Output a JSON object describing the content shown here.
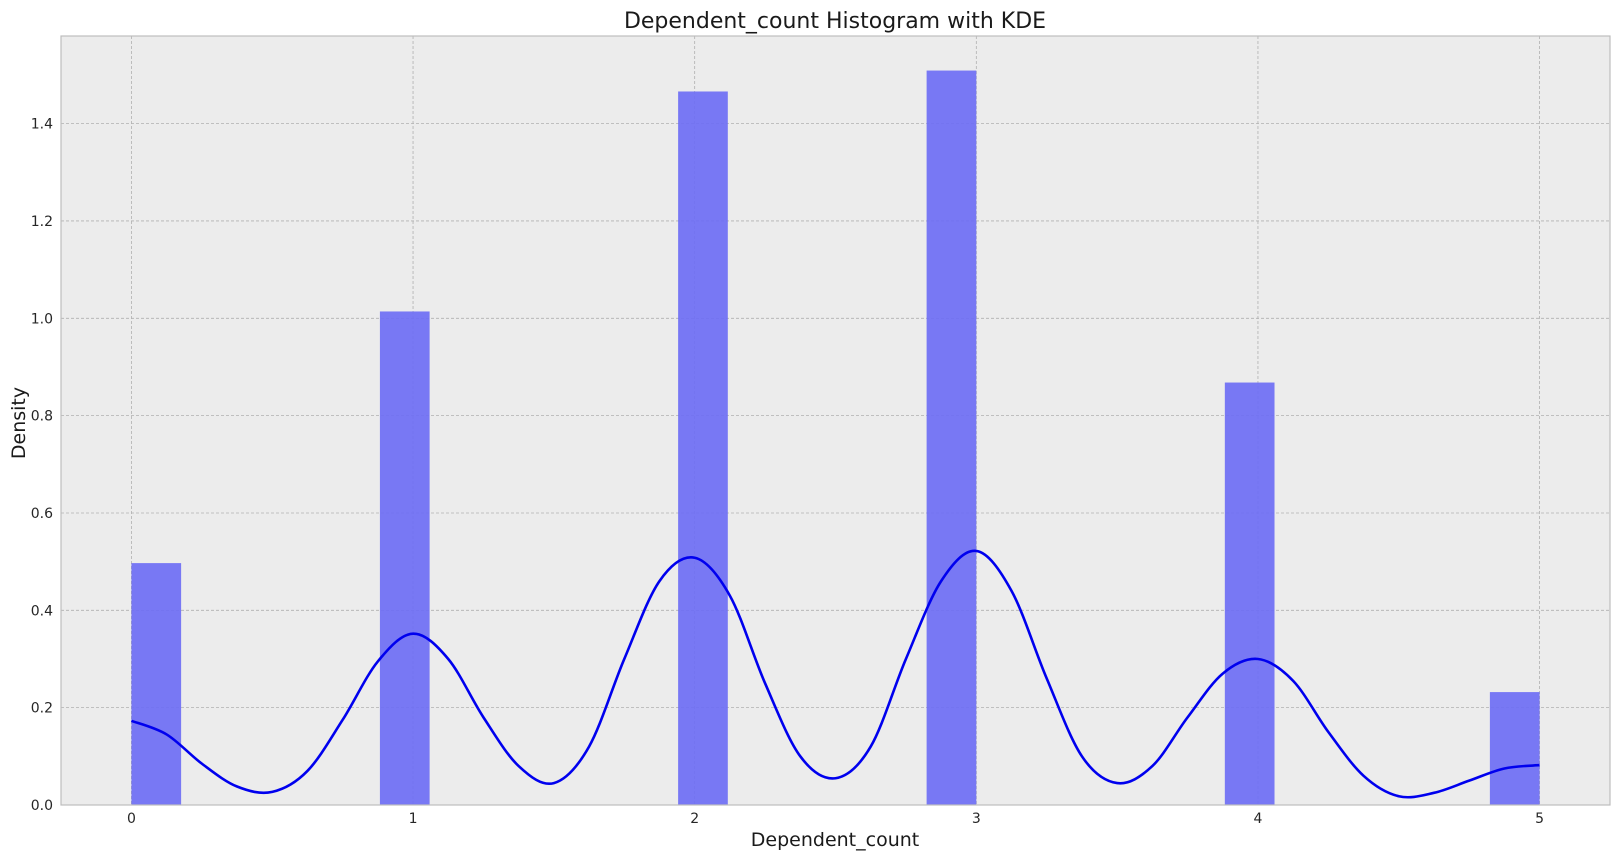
{
  "chart_data": {
    "type": "bar",
    "title": "Dependent_count Histogram with KDE",
    "xlabel": "Dependent_count",
    "ylabel": "Density",
    "xlim": [
      -0.25,
      5.25
    ],
    "ylim": [
      0,
      1.58
    ],
    "x_ticks": [
      0,
      1,
      2,
      3,
      4,
      5
    ],
    "y_ticks": [
      0.0,
      0.2,
      0.4,
      0.6,
      0.8,
      1.0,
      1.2,
      1.4
    ],
    "y_tick_labels": [
      "0.0",
      "0.2",
      "0.4",
      "0.6",
      "0.8",
      "1.0",
      "1.2",
      "1.4"
    ],
    "grid": true,
    "bar_color": "#6b6bf5",
    "line_color": "#0000ee",
    "background": "#ececec",
    "histogram": {
      "bins": [
        {
          "x0": 0.0,
          "x1": 0.1765,
          "density": 0.497
        },
        {
          "x0": 0.8824,
          "x1": 1.0588,
          "density": 1.014
        },
        {
          "x0": 1.9412,
          "x1": 2.1176,
          "density": 1.466
        },
        {
          "x0": 2.8235,
          "x1": 3.0,
          "density": 1.509
        },
        {
          "x0": 3.8824,
          "x1": 4.0588,
          "density": 0.868
        },
        {
          "x0": 4.8235,
          "x1": 5.0,
          "density": 0.232
        }
      ]
    },
    "kde": {
      "x": [
        0.0,
        0.125,
        0.25,
        0.375,
        0.5,
        0.625,
        0.75,
        0.875,
        1.0,
        1.125,
        1.25,
        1.375,
        1.5,
        1.625,
        1.75,
        1.875,
        2.0,
        2.125,
        2.25,
        2.375,
        2.5,
        2.625,
        2.75,
        2.875,
        3.0,
        3.125,
        3.25,
        3.375,
        3.5,
        3.625,
        3.75,
        3.875,
        4.0,
        4.125,
        4.25,
        4.375,
        4.5,
        4.625,
        4.75,
        4.875,
        5.0
      ],
      "y": [
        0.173,
        0.145,
        0.085,
        0.038,
        0.027,
        0.07,
        0.175,
        0.295,
        0.352,
        0.3,
        0.18,
        0.08,
        0.045,
        0.12,
        0.3,
        0.46,
        0.508,
        0.43,
        0.25,
        0.1,
        0.055,
        0.12,
        0.3,
        0.46,
        0.522,
        0.44,
        0.26,
        0.1,
        0.045,
        0.08,
        0.18,
        0.27,
        0.3,
        0.255,
        0.15,
        0.06,
        0.018,
        0.025,
        0.05,
        0.075,
        0.082
      ]
    }
  }
}
